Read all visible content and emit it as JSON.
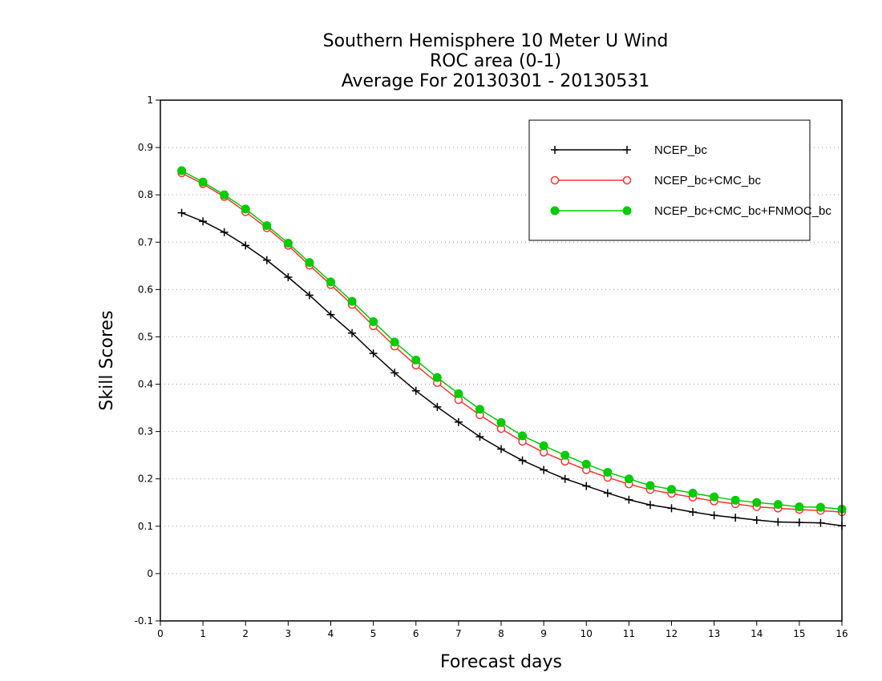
{
  "chart_data": {
    "type": "line",
    "title_lines": [
      "Southern Hemisphere 10 Meter U Wind",
      "ROC area (0-1)",
      "Average For 20130301 - 20130531"
    ],
    "xlabel": "Forecast days",
    "ylabel": "Skill Scores",
    "xlim": [
      0,
      16
    ],
    "ylim": [
      -0.1,
      1
    ],
    "x_ticks": [
      "0",
      "1",
      "2",
      "3",
      "4",
      "5",
      "6",
      "7",
      "8",
      "9",
      "10",
      "11",
      "12",
      "13",
      "14",
      "15",
      "16"
    ],
    "y_ticks": [
      "-0.1",
      "0",
      "0.1",
      "0.2",
      "0.3",
      "0.4",
      "0.5",
      "0.6",
      "0.7",
      "0.8",
      "0.9",
      "1"
    ],
    "grid": true,
    "legend_position": "top-right",
    "x": [
      0.5,
      1,
      1.5,
      2,
      2.5,
      3,
      3.5,
      4,
      4.5,
      5,
      5.5,
      6,
      6.5,
      7,
      7.5,
      8,
      8.5,
      9,
      9.5,
      10,
      10.5,
      11,
      11.5,
      12,
      12.5,
      13,
      13.5,
      14,
      14.5,
      15,
      15.5,
      16
    ],
    "series": [
      {
        "name": "NCEP_bc",
        "color": "#000000",
        "marker": "plus",
        "values": [
          0.762,
          0.744,
          0.721,
          0.693,
          0.662,
          0.626,
          0.588,
          0.547,
          0.508,
          0.465,
          0.424,
          0.386,
          0.352,
          0.32,
          0.289,
          0.263,
          0.239,
          0.219,
          0.2,
          0.185,
          0.17,
          0.156,
          0.145,
          0.138,
          0.13,
          0.123,
          0.118,
          0.113,
          0.109,
          0.108,
          0.107,
          0.101
        ]
      },
      {
        "name": "NCEP_bc+CMC_bc",
        "color": "#ff3333",
        "marker": "open-circle",
        "values": [
          0.846,
          0.823,
          0.796,
          0.764,
          0.73,
          0.693,
          0.651,
          0.61,
          0.568,
          0.523,
          0.48,
          0.44,
          0.403,
          0.367,
          0.335,
          0.306,
          0.279,
          0.256,
          0.237,
          0.219,
          0.203,
          0.189,
          0.177,
          0.169,
          0.161,
          0.153,
          0.147,
          0.141,
          0.138,
          0.135,
          0.133,
          0.13
        ]
      },
      {
        "name": "NCEP_bc+CMC_bc+FNMOC_bc",
        "color": "#00cc00",
        "marker": "filled-circle",
        "values": [
          0.851,
          0.827,
          0.8,
          0.77,
          0.735,
          0.698,
          0.657,
          0.616,
          0.575,
          0.532,
          0.489,
          0.451,
          0.414,
          0.38,
          0.347,
          0.319,
          0.291,
          0.27,
          0.25,
          0.231,
          0.214,
          0.2,
          0.186,
          0.178,
          0.17,
          0.162,
          0.155,
          0.15,
          0.146,
          0.141,
          0.14,
          0.136
        ]
      }
    ]
  }
}
